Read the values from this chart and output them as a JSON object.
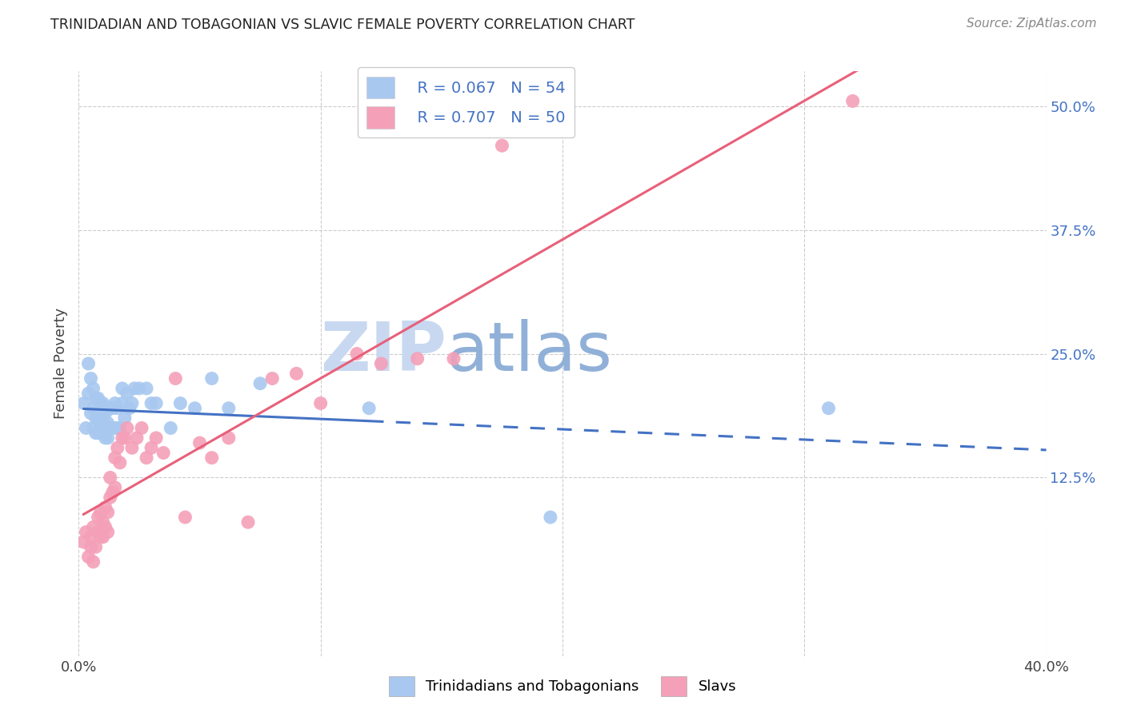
{
  "title": "TRINIDADIAN AND TOBAGONIAN VS SLAVIC FEMALE POVERTY CORRELATION CHART",
  "source": "Source: ZipAtlas.com",
  "ylabel": "Female Poverty",
  "xlim": [
    0.0,
    0.4
  ],
  "ylim": [
    -0.055,
    0.535
  ],
  "ytick_labels": [
    "12.5%",
    "25.0%",
    "37.5%",
    "50.0%"
  ],
  "ytick_vals": [
    0.125,
    0.25,
    0.375,
    0.5
  ],
  "legend_label1": "Trinidadians and Tobagonians",
  "legend_label2": "Slavs",
  "legend_r1": "R = 0.067",
  "legend_n1": "N = 54",
  "legend_r2": "R = 0.707",
  "legend_n2": "N = 50",
  "blue_color": "#A8C8F0",
  "pink_color": "#F4A0B8",
  "line_blue": "#4472C4",
  "line_pink": "#E8607A",
  "watermark_zip": "ZIP",
  "watermark_atlas": "atlas",
  "watermark_color_zip": "#C8D8F0",
  "watermark_color_atlas": "#90B0D8",
  "blue_scatter_x": [
    0.002,
    0.003,
    0.004,
    0.004,
    0.005,
    0.005,
    0.006,
    0.006,
    0.006,
    0.007,
    0.007,
    0.007,
    0.008,
    0.008,
    0.008,
    0.009,
    0.009,
    0.01,
    0.01,
    0.01,
    0.011,
    0.011,
    0.011,
    0.012,
    0.012,
    0.013,
    0.013,
    0.014,
    0.014,
    0.015,
    0.015,
    0.016,
    0.016,
    0.017,
    0.018,
    0.018,
    0.019,
    0.02,
    0.021,
    0.022,
    0.023,
    0.025,
    0.028,
    0.03,
    0.032,
    0.038,
    0.042,
    0.048,
    0.055,
    0.062,
    0.075,
    0.12,
    0.195,
    0.31
  ],
  "blue_scatter_y": [
    0.2,
    0.175,
    0.21,
    0.24,
    0.19,
    0.225,
    0.175,
    0.195,
    0.215,
    0.17,
    0.185,
    0.205,
    0.17,
    0.185,
    0.205,
    0.18,
    0.2,
    0.17,
    0.185,
    0.2,
    0.165,
    0.175,
    0.19,
    0.165,
    0.18,
    0.175,
    0.195,
    0.175,
    0.195,
    0.175,
    0.2,
    0.175,
    0.195,
    0.175,
    0.2,
    0.215,
    0.185,
    0.21,
    0.195,
    0.2,
    0.215,
    0.215,
    0.215,
    0.2,
    0.2,
    0.175,
    0.2,
    0.195,
    0.225,
    0.195,
    0.22,
    0.195,
    0.085,
    0.195
  ],
  "pink_scatter_x": [
    0.002,
    0.003,
    0.004,
    0.005,
    0.005,
    0.006,
    0.006,
    0.007,
    0.008,
    0.008,
    0.009,
    0.009,
    0.01,
    0.01,
    0.011,
    0.011,
    0.012,
    0.012,
    0.013,
    0.013,
    0.014,
    0.015,
    0.015,
    0.016,
    0.017,
    0.018,
    0.019,
    0.02,
    0.022,
    0.024,
    0.026,
    0.028,
    0.03,
    0.032,
    0.035,
    0.04,
    0.044,
    0.05,
    0.055,
    0.062,
    0.07,
    0.08,
    0.09,
    0.1,
    0.115,
    0.125,
    0.14,
    0.155,
    0.175,
    0.32
  ],
  "pink_scatter_y": [
    0.06,
    0.07,
    0.045,
    0.055,
    0.065,
    0.04,
    0.075,
    0.055,
    0.07,
    0.085,
    0.065,
    0.09,
    0.065,
    0.08,
    0.075,
    0.095,
    0.09,
    0.07,
    0.105,
    0.125,
    0.11,
    0.115,
    0.145,
    0.155,
    0.14,
    0.165,
    0.165,
    0.175,
    0.155,
    0.165,
    0.175,
    0.145,
    0.155,
    0.165,
    0.15,
    0.225,
    0.085,
    0.16,
    0.145,
    0.165,
    0.08,
    0.225,
    0.23,
    0.2,
    0.25,
    0.24,
    0.245,
    0.245,
    0.46,
    0.505
  ]
}
